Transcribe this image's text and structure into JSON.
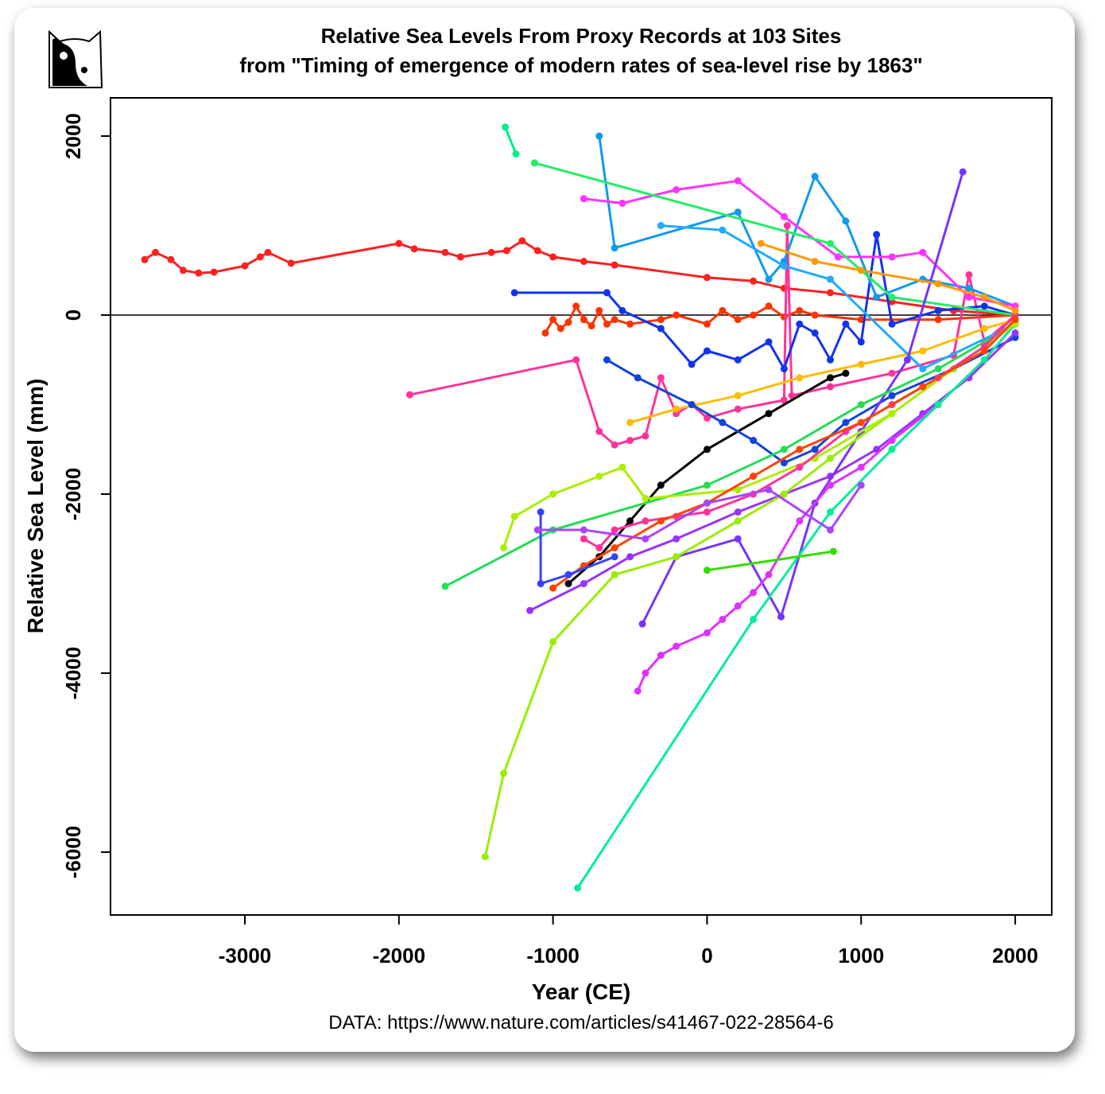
{
  "chart_data": {
    "type": "line",
    "title": "Relative Sea Levels From Proxy Records at 103 Sites",
    "subtitle": "from \"Timing of emergence of modern rates of sea-level rise by 1863\"",
    "x_label": "Year (CE)",
    "y_label": "Relative Sea Level (mm)",
    "source": "DATA: https://www.nature.com/articles/s41467-022-28564-6",
    "xlim": [
      -3872,
      2237
    ],
    "ylim": [
      -6702,
      2427
    ],
    "xticks": [
      -3000,
      -2000,
      -1000,
      0,
      1000,
      2000
    ],
    "yticks": [
      -6000,
      -4000,
      -2000,
      0,
      2000
    ],
    "reference_line": 0,
    "series": [
      {
        "color": "#ff2020",
        "x": [
          -3650,
          -3580,
          -3480,
          -3400,
          -3300,
          -3200,
          -3000,
          -2900,
          -2850,
          -2700,
          -2000,
          -1900,
          -1700,
          -1600,
          -1400,
          -1300,
          -1200,
          -1100,
          -1000,
          -800,
          -600,
          0,
          300,
          500,
          800,
          1200,
          1600,
          2000
        ],
        "values": [
          620,
          700,
          620,
          500,
          470,
          480,
          550,
          650,
          700,
          580,
          800,
          740,
          700,
          650,
          700,
          720,
          830,
          720,
          650,
          600,
          560,
          420,
          380,
          300,
          250,
          150,
          50,
          0
        ]
      },
      {
        "color": "#ff3300",
        "x": [
          -1050,
          -1000,
          -950,
          -900,
          -850,
          -800,
          -750,
          -700,
          -650,
          -600,
          -500,
          -300,
          -200,
          0,
          100,
          200,
          300,
          400,
          500,
          600,
          700,
          1000,
          1500,
          2000
        ],
        "values": [
          -200,
          -50,
          -150,
          -80,
          100,
          -50,
          -120,
          50,
          -100,
          -50,
          -100,
          -50,
          0,
          -100,
          50,
          -50,
          0,
          100,
          -20,
          50,
          0,
          -50,
          -50,
          0
        ]
      },
      {
        "color": "#ff3399",
        "x": [
          -1930,
          -850,
          -700,
          -600,
          -500,
          -400,
          -300,
          -200,
          -100,
          0,
          200,
          500,
          520,
          550,
          800,
          1200,
          1600,
          1700,
          1800,
          2000
        ],
        "values": [
          -890,
          -500,
          -1300,
          -1450,
          -1400,
          -1350,
          -700,
          -1100,
          -1000,
          -1150,
          -1050,
          -950,
          1000,
          -900,
          -800,
          -650,
          -450,
          450,
          -300,
          0
        ]
      },
      {
        "color": "#ffbb00",
        "x": [
          -500,
          -200,
          200,
          600,
          1000,
          1400,
          1800,
          2000
        ],
        "values": [
          -1200,
          -1050,
          -900,
          -700,
          -550,
          -400,
          -150,
          -50
        ]
      },
      {
        "color": "#000000",
        "x": [
          -900,
          -700,
          -500,
          -300,
          0,
          400,
          800,
          900
        ],
        "values": [
          -3000,
          -2700,
          -2300,
          -1900,
          -1500,
          -1100,
          -700,
          -650
        ]
      },
      {
        "color": "#1133ee",
        "x": [
          -1250,
          -650,
          -550,
          -300,
          -100,
          0,
          200,
          400,
          500,
          600,
          700,
          800,
          900,
          1000,
          1100,
          1200,
          1500,
          1800,
          2000
        ],
        "values": [
          250,
          250,
          50,
          -150,
          -550,
          -400,
          -500,
          -300,
          -600,
          -100,
          -200,
          -500,
          -100,
          -300,
          900,
          -100,
          50,
          100,
          0
        ]
      },
      {
        "color": "#1144dd",
        "x": [
          -650,
          -450,
          -100,
          100,
          300,
          500,
          700,
          900,
          1200,
          1600,
          2000
        ],
        "values": [
          -500,
          -700,
          -1000,
          -1200,
          -1400,
          -1650,
          -1500,
          -1200,
          -900,
          -600,
          -250
        ]
      },
      {
        "color": "#1199ee",
        "x": [
          -700,
          -600,
          200,
          400,
          500,
          700,
          900,
          1100,
          1400,
          1700,
          2000
        ],
        "values": [
          2000,
          750,
          1150,
          400,
          600,
          1550,
          1050,
          200,
          400,
          300,
          100
        ]
      },
      {
        "color": "#22aaff",
        "x": [
          -300,
          100,
          500,
          800,
          1400,
          2000
        ],
        "values": [
          1000,
          950,
          550,
          400,
          -600,
          -100
        ]
      },
      {
        "color": "#ff33ff",
        "x": [
          -800,
          -550,
          -200,
          200,
          500,
          850,
          1200,
          1400,
          1700,
          2000
        ],
        "values": [
          1300,
          1250,
          1400,
          1500,
          1100,
          650,
          650,
          700,
          200,
          100
        ]
      },
      {
        "color": "#00ee88",
        "x": [
          -1310,
          -1240
        ],
        "values": [
          2100,
          1800
        ]
      },
      {
        "color": "#22ee66",
        "x": [
          -1120,
          800,
          1200,
          2000
        ],
        "values": [
          1700,
          800,
          200,
          0
        ]
      },
      {
        "color": "#9933ff",
        "x": [
          -1150,
          -800,
          -500,
          -200,
          200,
          500,
          800,
          1100,
          1400,
          1700,
          2000
        ],
        "values": [
          -3300,
          -3000,
          -2700,
          -2500,
          -2200,
          -2000,
          -1800,
          -1500,
          -1100,
          -700,
          -200
        ]
      },
      {
        "color": "#7733ff",
        "x": [
          -420,
          -200,
          200,
          480,
          700,
          1000,
          1300,
          1660
        ],
        "values": [
          -3450,
          -2700,
          -2500,
          -3370,
          -2100,
          -1300,
          -500,
          1600
        ]
      },
      {
        "color": "#dd33ff",
        "x": [
          -450,
          -400,
          -300,
          -200,
          0,
          100,
          200,
          300,
          400,
          600,
          800,
          1000,
          1200,
          1500,
          1800,
          2000
        ],
        "values": [
          -4200,
          -4000,
          -3800,
          -3700,
          -3550,
          -3400,
          -3250,
          -3100,
          -2900,
          -2300,
          -1900,
          -1700,
          -1400,
          -1000,
          -500,
          -100
        ]
      },
      {
        "color": "#99ee00",
        "x": [
          -1440,
          -1320,
          -1000,
          -600,
          -200,
          200,
          500,
          800,
          1200,
          1600,
          2000
        ],
        "values": [
          -6050,
          -5120,
          -3650,
          -2900,
          -2700,
          -2300,
          -2000,
          -1600,
          -1100,
          -600,
          -100
        ]
      },
      {
        "color": "#00ee99",
        "x": [
          -840,
          300,
          800,
          1200,
          1500,
          1800,
          2000
        ],
        "values": [
          -6400,
          -3400,
          -2200,
          -1500,
          -1000,
          -500,
          -100
        ]
      },
      {
        "color": "#22dd55",
        "x": [
          -1700,
          -1000,
          0,
          500,
          1000,
          1500,
          2000
        ],
        "values": [
          -3030,
          -2400,
          -1900,
          -1500,
          -1000,
          -600,
          -100
        ]
      },
      {
        "color": "#aaee00",
        "x": [
          -1320,
          -1250,
          -1000,
          -700,
          -550,
          -400,
          200,
          700,
          1200,
          2000
        ],
        "values": [
          -2600,
          -2250,
          -2000,
          -1800,
          -1700,
          -2050,
          -1950,
          -1600,
          -1100,
          -100
        ]
      },
      {
        "color": "#33dd00",
        "x": [
          0,
          820
        ],
        "values": [
          -2850,
          -2640
        ]
      },
      {
        "color": "#ff3399",
        "x": [
          -800,
          -700,
          -600,
          -400,
          -200,
          0,
          300,
          600,
          900,
          1200,
          1500,
          1800,
          2000
        ],
        "values": [
          -2500,
          -2600,
          -2400,
          -2300,
          -2250,
          -2200,
          -2000,
          -1700,
          -1300,
          -1000,
          -700,
          -350,
          0
        ]
      },
      {
        "color": "#ff4400",
        "x": [
          -1000,
          -800,
          -600,
          -300,
          0,
          300,
          600,
          1000,
          1400,
          1800,
          2000
        ],
        "values": [
          -3050,
          -2800,
          -2600,
          -2300,
          -2100,
          -1800,
          -1500,
          -1200,
          -800,
          -400,
          -50
        ]
      },
      {
        "color": "#ff9900",
        "x": [
          350,
          700,
          1000,
          1500,
          1800,
          2000
        ],
        "values": [
          800,
          600,
          500,
          350,
          200,
          50
        ]
      },
      {
        "color": "#3344ff",
        "x": [
          -1080,
          -1080,
          -900,
          -600
        ],
        "values": [
          -2200,
          -3000,
          -2900,
          -2700
        ]
      },
      {
        "color": "#aa44ff",
        "x": [
          -1100,
          -800,
          -400,
          0,
          400,
          800,
          1000
        ],
        "values": [
          -2400,
          -2400,
          -2500,
          -2100,
          -1950,
          -2400,
          -1900
        ]
      }
    ]
  }
}
